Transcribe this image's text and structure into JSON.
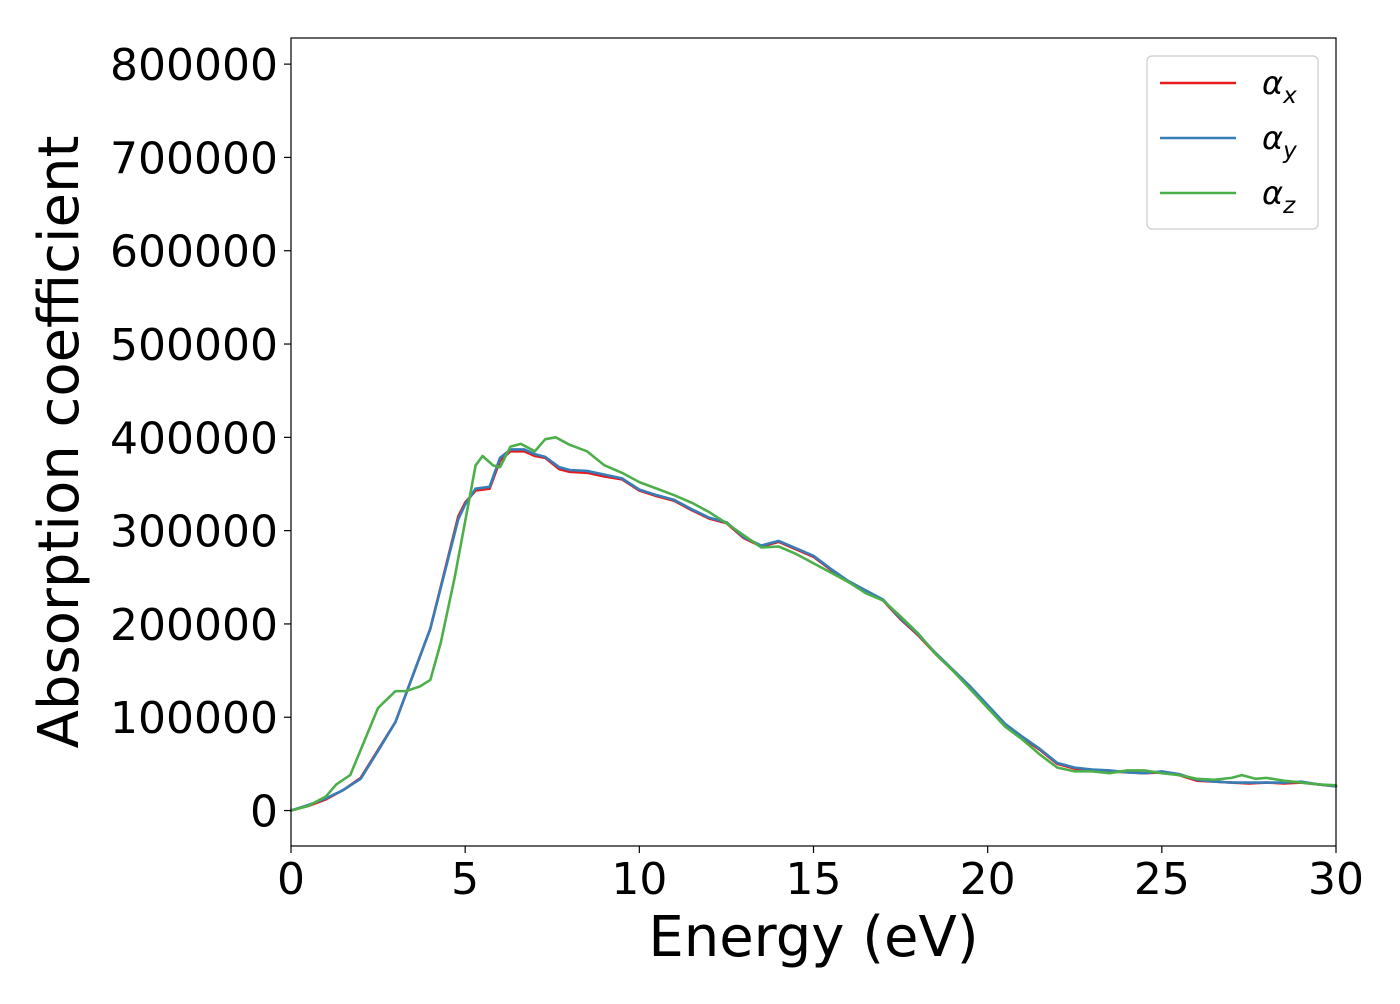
{
  "chart_data": {
    "type": "line",
    "title": "",
    "xlabel": "Energy (eV)",
    "ylabel": "Absorption coefficient",
    "xlim": [
      0,
      30
    ],
    "ylim": [
      -38000,
      828000
    ],
    "xticks": [
      "0",
      "5",
      "10",
      "15",
      "20",
      "25",
      "30"
    ],
    "xtick_values": [
      0,
      5,
      10,
      15,
      20,
      25,
      30
    ],
    "yticks": [
      "0",
      "100000",
      "200000",
      "300000",
      "400000",
      "500000",
      "600000",
      "700000",
      "800000"
    ],
    "ytick_values": [
      0,
      100000,
      200000,
      300000,
      400000,
      500000,
      600000,
      700000,
      800000
    ],
    "grid": false,
    "legend_position": "top-right",
    "series": [
      {
        "name": "α",
        "subscript": "x",
        "color": "#e41a1c",
        "x": [
          0,
          0.5,
          1.0,
          1.5,
          2.0,
          2.5,
          3.0,
          3.5,
          4.0,
          4.5,
          4.8,
          5.0,
          5.3,
          5.7,
          6.0,
          6.3,
          6.7,
          7.0,
          7.3,
          7.7,
          8.0,
          8.5,
          9.0,
          9.5,
          10.0,
          10.5,
          11.0,
          11.5,
          12.0,
          12.5,
          13.0,
          13.5,
          14.0,
          14.5,
          15.0,
          15.5,
          16.0,
          16.5,
          17.0,
          17.5,
          18.0,
          18.5,
          19.0,
          19.5,
          20.0,
          20.5,
          21.0,
          21.5,
          22.0,
          22.5,
          23.0,
          23.5,
          24.0,
          24.5,
          25.0,
          25.5,
          26.0,
          26.5,
          27.0,
          27.5,
          28.0,
          28.5,
          29.0,
          29.5,
          30.0
        ],
        "values": [
          0,
          5000,
          12000,
          22000,
          35000,
          65000,
          95000,
          145000,
          195000,
          270000,
          315000,
          330000,
          343000,
          345000,
          375000,
          385000,
          385000,
          380000,
          378000,
          366000,
          363000,
          362000,
          358000,
          355000,
          343000,
          337000,
          332000,
          322000,
          313000,
          308000,
          292000,
          283000,
          288000,
          280000,
          272000,
          258000,
          245000,
          235000,
          225000,
          205000,
          188000,
          168000,
          150000,
          132000,
          112000,
          92000,
          78000,
          65000,
          50000,
          45000,
          43000,
          42000,
          41000,
          40000,
          41000,
          38000,
          32000,
          31000,
          30000,
          29000,
          30000,
          29000,
          30000,
          28000,
          26000
        ]
      },
      {
        "name": "α",
        "subscript": "y",
        "color": "#377eb8",
        "x": [
          0,
          0.5,
          1.0,
          1.5,
          2.0,
          2.5,
          3.0,
          3.5,
          4.0,
          4.5,
          4.8,
          5.0,
          5.3,
          5.7,
          6.0,
          6.3,
          6.7,
          7.0,
          7.3,
          7.7,
          8.0,
          8.5,
          9.0,
          9.5,
          10.0,
          10.5,
          11.0,
          11.5,
          12.0,
          12.5,
          13.0,
          13.5,
          14.0,
          14.5,
          15.0,
          15.5,
          16.0,
          16.5,
          17.0,
          17.5,
          18.0,
          18.5,
          19.0,
          19.5,
          20.0,
          20.5,
          21.0,
          21.5,
          22.0,
          22.5,
          23.0,
          23.5,
          24.0,
          24.5,
          25.0,
          25.5,
          26.0,
          26.5,
          27.0,
          27.5,
          28.0,
          28.5,
          29.0,
          29.5,
          30.0
        ],
        "values": [
          0,
          6000,
          13000,
          22000,
          34000,
          64000,
          95000,
          145000,
          195000,
          268000,
          312000,
          328000,
          345000,
          347000,
          378000,
          387000,
          387000,
          382000,
          379000,
          368000,
          365000,
          364000,
          360000,
          356000,
          344000,
          338000,
          333000,
          323000,
          314000,
          309000,
          293000,
          284000,
          289000,
          281000,
          273000,
          259000,
          246000,
          236000,
          226000,
          206000,
          189000,
          169000,
          151000,
          133000,
          113000,
          93000,
          79000,
          66000,
          51000,
          46000,
          44000,
          43000,
          41000,
          40000,
          42000,
          39000,
          33000,
          31000,
          30000,
          30000,
          30000,
          30000,
          31000,
          28000,
          26000
        ]
      },
      {
        "name": "α",
        "subscript": "z",
        "color": "#4daf4a",
        "x": [
          0,
          0.5,
          1.0,
          1.3,
          1.7,
          2.0,
          2.5,
          3.0,
          3.3,
          3.7,
          4.0,
          4.3,
          4.7,
          5.0,
          5.3,
          5.5,
          5.8,
          6.0,
          6.3,
          6.6,
          7.0,
          7.3,
          7.6,
          8.0,
          8.5,
          9.0,
          9.5,
          10.0,
          10.5,
          11.0,
          11.5,
          12.0,
          12.5,
          13.0,
          13.5,
          14.0,
          14.5,
          15.0,
          15.5,
          16.0,
          16.5,
          17.0,
          17.5,
          18.0,
          18.5,
          19.0,
          19.5,
          20.0,
          20.5,
          21.0,
          21.5,
          22.0,
          22.5,
          23.0,
          23.5,
          24.0,
          24.5,
          25.0,
          25.5,
          26.0,
          26.5,
          27.0,
          27.3,
          27.7,
          28.0,
          28.5,
          29.0,
          29.5,
          30.0
        ],
        "values": [
          0,
          5000,
          15000,
          28000,
          38000,
          65000,
          110000,
          128000,
          128000,
          133000,
          140000,
          180000,
          250000,
          310000,
          370000,
          380000,
          370000,
          368000,
          390000,
          393000,
          385000,
          398000,
          400000,
          392000,
          385000,
          370000,
          362000,
          352000,
          345000,
          338000,
          330000,
          320000,
          308000,
          295000,
          282000,
          283000,
          275000,
          265000,
          255000,
          245000,
          233000,
          225000,
          208000,
          190000,
          168000,
          150000,
          130000,
          110000,
          90000,
          76000,
          60000,
          46000,
          42000,
          42000,
          40000,
          43000,
          43000,
          40000,
          38000,
          34000,
          33000,
          35000,
          38000,
          34000,
          35000,
          32000,
          30000,
          28000,
          27000
        ]
      }
    ]
  }
}
